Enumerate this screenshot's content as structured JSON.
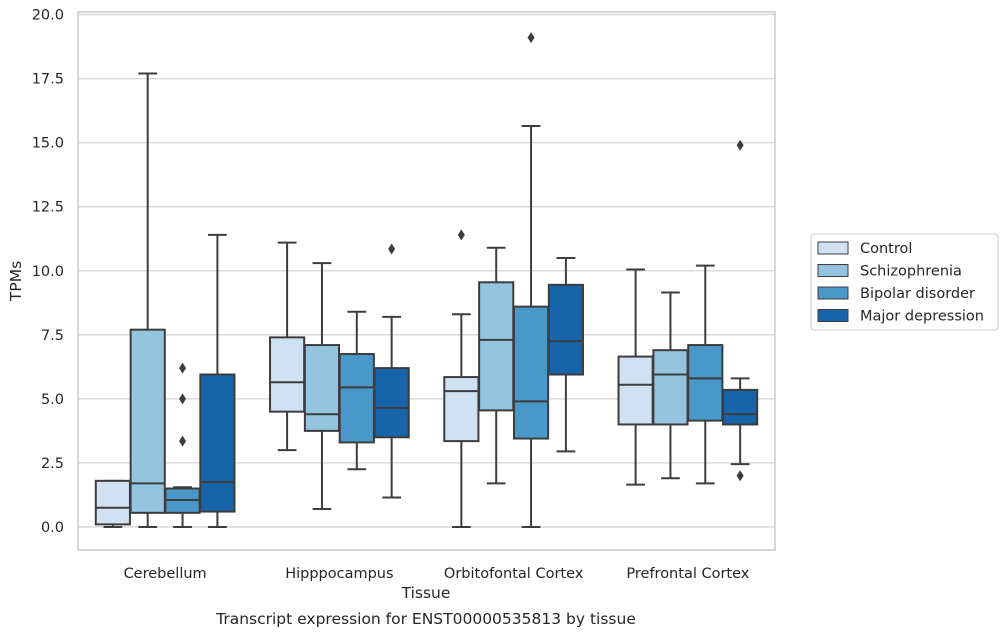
{
  "chart_data": {
    "type": "box",
    "title": "",
    "caption": "Transcript expression for ENST00000535813 by tissue",
    "xlabel": "Tissue",
    "ylabel": "TPMs",
    "ylim": [
      -0.9,
      20.1
    ],
    "yticks": [
      "0.0",
      "2.5",
      "5.0",
      "7.5",
      "10.0",
      "12.5",
      "15.0",
      "17.5",
      "20.0"
    ],
    "grid": "horizontal",
    "legend_position": "right",
    "categories": [
      "Cerebellum",
      "Hipppocampus",
      "Orbitofontal Cortex",
      "Prefrontal Cortex"
    ],
    "series": [
      {
        "name": "Control",
        "color": "#d0e1f2",
        "boxes": [
          {
            "min": 0.0,
            "q1": 0.1,
            "median": 0.75,
            "q3": 1.8,
            "max": 1.8,
            "outliers": []
          },
          {
            "min": 3.0,
            "q1": 4.5,
            "median": 5.65,
            "q3": 7.4,
            "max": 11.1,
            "outliers": []
          },
          {
            "min": 0.0,
            "q1": 3.35,
            "median": 5.3,
            "q3": 5.85,
            "max": 8.3,
            "outliers": [
              11.4
            ]
          },
          {
            "min": 1.65,
            "q1": 4.0,
            "median": 5.55,
            "q3": 6.65,
            "max": 10.05,
            "outliers": []
          }
        ]
      },
      {
        "name": "Schizophrenia",
        "color": "#94c4df",
        "boxes": [
          {
            "min": 0.0,
            "q1": 0.55,
            "median": 1.7,
            "q3": 7.7,
            "max": 17.7,
            "outliers": []
          },
          {
            "min": 0.7,
            "q1": 3.75,
            "median": 4.4,
            "q3": 7.1,
            "max": 10.3,
            "outliers": []
          },
          {
            "min": 1.7,
            "q1": 4.55,
            "median": 7.3,
            "q3": 9.55,
            "max": 10.9,
            "outliers": []
          },
          {
            "min": 1.9,
            "q1": 4.0,
            "median": 5.95,
            "q3": 6.9,
            "max": 9.15,
            "outliers": []
          }
        ]
      },
      {
        "name": "Bipolar disorder",
        "color": "#4a98c9",
        "boxes": [
          {
            "min": 0.0,
            "q1": 0.55,
            "median": 1.05,
            "q3": 1.5,
            "max": 1.55,
            "outliers": [
              6.2,
              5.0,
              3.35
            ]
          },
          {
            "min": 2.25,
            "q1": 3.3,
            "median": 5.45,
            "q3": 6.75,
            "max": 8.4,
            "outliers": []
          },
          {
            "min": 0.0,
            "q1": 3.45,
            "median": 4.9,
            "q3": 8.6,
            "max": 15.65,
            "outliers": [
              19.1
            ]
          },
          {
            "min": 1.7,
            "q1": 4.15,
            "median": 5.8,
            "q3": 7.1,
            "max": 10.2,
            "outliers": []
          }
        ]
      },
      {
        "name": "Major depression",
        "color": "#1764ab",
        "boxes": [
          {
            "min": 0.0,
            "q1": 0.6,
            "median": 1.75,
            "q3": 5.95,
            "max": 11.4,
            "outliers": []
          },
          {
            "min": 1.15,
            "q1": 3.5,
            "median": 4.65,
            "q3": 6.2,
            "max": 8.2,
            "outliers": [
              10.85
            ]
          },
          {
            "min": 2.95,
            "q1": 5.95,
            "median": 7.25,
            "q3": 9.45,
            "max": 10.5,
            "outliers": []
          },
          {
            "min": 2.45,
            "q1": 4.0,
            "median": 4.4,
            "q3": 5.35,
            "max": 5.8,
            "outliers": [
              14.9,
              2.0
            ]
          }
        ]
      }
    ],
    "outlier_marker": "diamond"
  }
}
